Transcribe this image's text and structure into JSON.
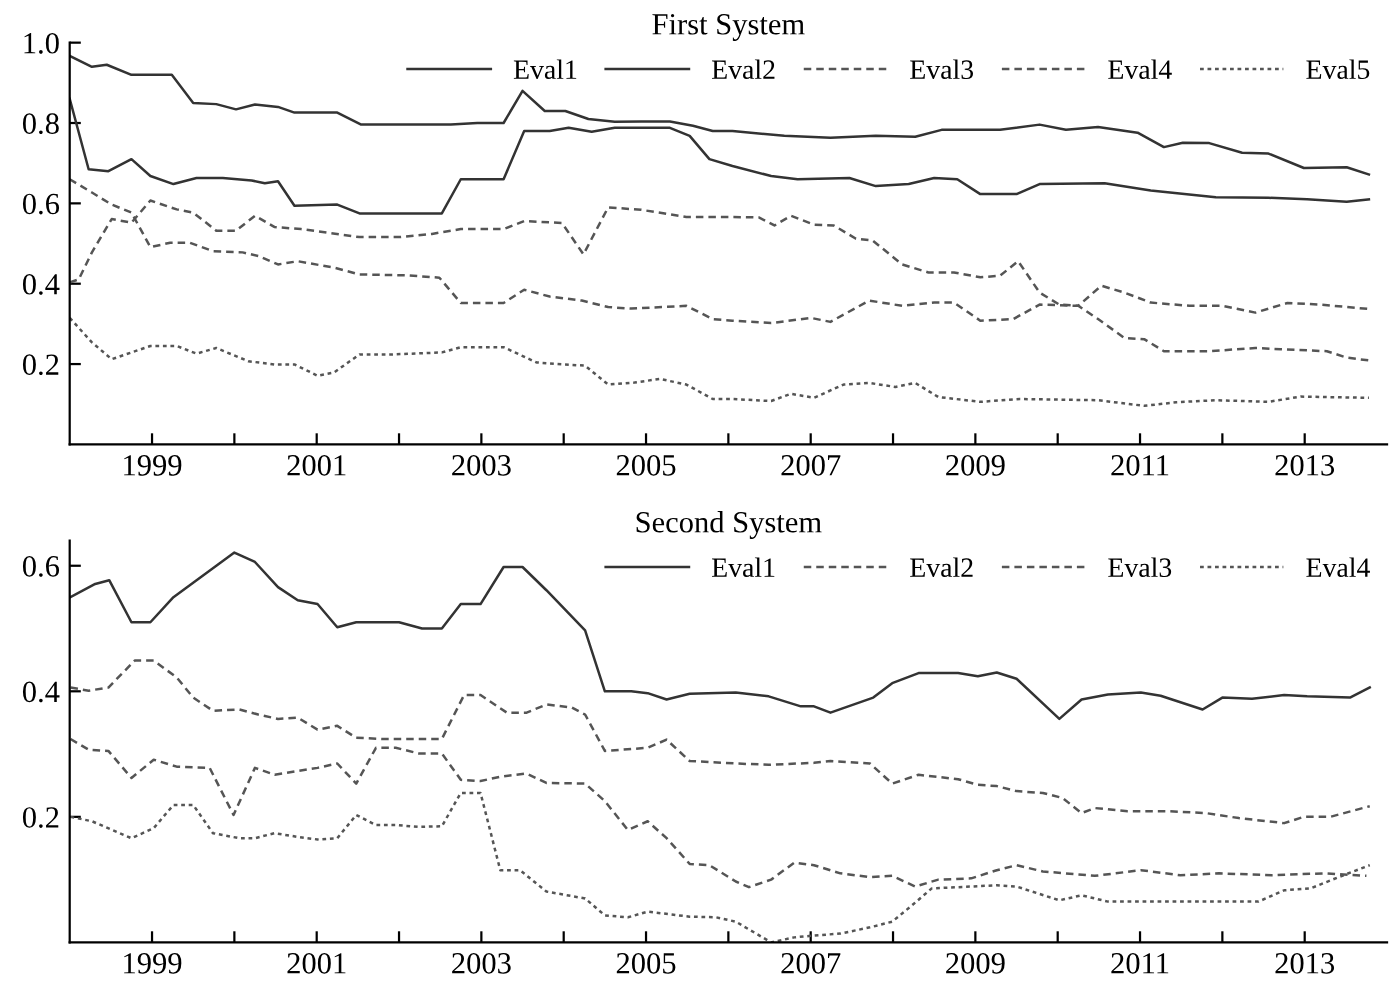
{
  "chart_data": [
    {
      "type": "line",
      "title": "First System",
      "legend": "top right",
      "xlim": [
        1998,
        2014
      ],
      "ylim": [
        0,
        1.0
      ],
      "xticks": [
        1999,
        {
          "value": 2000,
          "label": null
        },
        2001,
        {
          "value": 2002,
          "label": null
        },
        2003,
        {
          "value": 2004,
          "label": null
        },
        2005,
        {
          "value": 2006,
          "label": null
        },
        2007,
        {
          "value": 2008,
          "label": null
        },
        2009,
        {
          "value": 2010,
          "label": null
        },
        2011,
        {
          "value": 2012,
          "label": null
        },
        2013
      ],
      "yticks": [
        {
          "value": 0.2,
          "label": "0.2"
        },
        {
          "value": 0.4,
          "label": "0.4"
        },
        {
          "value": 0.6,
          "label": "0.6"
        },
        {
          "value": 0.8,
          "label": "0.8"
        },
        {
          "value": 1.0,
          "label": "1.0"
        }
      ],
      "series": [
        {
          "name": "Eval1",
          "color": "#333333",
          "line_style": "solid",
          "x": [
            1998.0,
            1998.27,
            1998.45,
            1998.75,
            1999.24,
            1999.5,
            1999.78,
            2000.02,
            2000.25,
            2000.53,
            2000.73,
            2001.25,
            2001.54,
            2002.63,
            2002.95,
            2003.27,
            2003.5,
            2003.77,
            2004.02,
            2004.3,
            2004.62,
            2004.94,
            2005.29,
            2005.57,
            2005.81,
            2006.05,
            2006.68,
            2007.24,
            2007.79,
            2008.27,
            2008.59,
            2009.3,
            2009.78,
            2010.1,
            2010.49,
            2010.97,
            2011.29,
            2011.52,
            2011.84,
            2012.24,
            2012.56,
            2012.99,
            2013.51,
            2013.78
          ],
          "values": [
            0.967,
            0.94,
            0.945,
            0.92,
            0.92,
            0.85,
            0.847,
            0.834,
            0.846,
            0.84,
            0.826,
            0.826,
            0.796,
            0.796,
            0.8,
            0.8,
            0.88,
            0.83,
            0.83,
            0.81,
            0.803,
            0.804,
            0.804,
            0.793,
            0.78,
            0.78,
            0.768,
            0.763,
            0.768,
            0.766,
            0.783,
            0.783,
            0.796,
            0.783,
            0.79,
            0.776,
            0.74,
            0.751,
            0.75,
            0.726,
            0.724,
            0.688,
            0.69,
            0.672
          ]
        },
        {
          "name": "Eval2",
          "color": "#333333",
          "line_style": "solid",
          "x": [
            1998.0,
            1998.23,
            1998.47,
            1998.75,
            1998.98,
            1999.26,
            1999.54,
            1999.86,
            2000.21,
            2000.37,
            2000.53,
            2000.73,
            2001.25,
            2001.52,
            2002.52,
            2002.75,
            2003.27,
            2003.52,
            2003.83,
            2004.06,
            2004.34,
            2004.62,
            2005.29,
            2005.53,
            2005.77,
            2006.05,
            2006.52,
            2006.84,
            2007.47,
            2007.79,
            2008.19,
            2008.5,
            2008.78,
            2009.06,
            2009.5,
            2009.78,
            2010.57,
            2011.13,
            2011.92,
            2012.56,
            2013.03,
            2013.51,
            2013.78
          ],
          "values": [
            0.86,
            0.685,
            0.68,
            0.71,
            0.668,
            0.648,
            0.663,
            0.663,
            0.657,
            0.65,
            0.655,
            0.594,
            0.597,
            0.575,
            0.575,
            0.66,
            0.66,
            0.78,
            0.78,
            0.788,
            0.778,
            0.788,
            0.788,
            0.768,
            0.71,
            0.693,
            0.668,
            0.66,
            0.663,
            0.643,
            0.648,
            0.663,
            0.66,
            0.623,
            0.623,
            0.648,
            0.65,
            0.632,
            0.615,
            0.614,
            0.61,
            0.604,
            0.61
          ]
        },
        {
          "name": "Eval3",
          "color": "#555555",
          "line_style": "dashed",
          "x": [
            1998.0,
            1998.27,
            1998.51,
            1998.75,
            1998.98,
            1999.22,
            1999.46,
            1999.74,
            2000.1,
            2000.29,
            2000.53,
            2000.77,
            2001.21,
            2001.52,
            2002.08,
            2002.49,
            2002.75,
            2003.27,
            2003.52,
            2003.83,
            2004.22,
            2004.54,
            2004.82,
            2005.49,
            2005.81,
            2006.05,
            2006.52,
            2007.0,
            2007.24,
            2007.71,
            2008.11,
            2008.5,
            2008.74,
            2009.06,
            2009.46,
            2009.78,
            2010.25,
            2010.53,
            2010.81,
            2011.13,
            2011.6,
            2012.0,
            2012.4,
            2012.79,
            2013.19,
            2013.78
          ],
          "values": [
            0.66,
            0.627,
            0.597,
            0.577,
            0.491,
            0.502,
            0.502,
            0.481,
            0.478,
            0.469,
            0.448,
            0.456,
            0.44,
            0.423,
            0.421,
            0.415,
            0.352,
            0.352,
            0.385,
            0.368,
            0.358,
            0.342,
            0.338,
            0.345,
            0.312,
            0.308,
            0.302,
            0.315,
            0.305,
            0.358,
            0.345,
            0.353,
            0.353,
            0.308,
            0.312,
            0.348,
            0.345,
            0.395,
            0.378,
            0.353,
            0.345,
            0.345,
            0.328,
            0.352,
            0.348,
            0.337
          ]
        },
        {
          "name": "Eval4",
          "color": "#555555",
          "line_style": "dashed",
          "x": [
            1998.0,
            1998.11,
            1998.27,
            1998.51,
            1998.75,
            1998.98,
            1999.3,
            1999.5,
            1999.78,
            2000.02,
            2000.25,
            2000.49,
            2000.81,
            2001.13,
            2001.52,
            2002.0,
            2002.4,
            2002.75,
            2003.27,
            2003.52,
            2003.98,
            2004.24,
            2004.54,
            2004.94,
            2005.49,
            2006.05,
            2006.37,
            2006.56,
            2006.76,
            2007.04,
            2007.28,
            2007.55,
            2007.75,
            2008.11,
            2008.43,
            2008.74,
            2009.06,
            2009.3,
            2009.52,
            2009.78,
            2010.02,
            2010.25,
            2010.49,
            2010.81,
            2011.05,
            2011.29,
            2011.84,
            2012.4,
            2012.71,
            2013.27,
            2013.51,
            2013.78
          ],
          "values": [
            0.403,
            0.411,
            0.478,
            0.561,
            0.552,
            0.607,
            0.585,
            0.577,
            0.532,
            0.532,
            0.569,
            0.541,
            0.536,
            0.527,
            0.516,
            0.516,
            0.524,
            0.536,
            0.536,
            0.556,
            0.551,
            0.473,
            0.59,
            0.584,
            0.566,
            0.566,
            0.565,
            0.545,
            0.569,
            0.547,
            0.545,
            0.512,
            0.508,
            0.448,
            0.428,
            0.428,
            0.416,
            0.42,
            0.456,
            0.378,
            0.348,
            0.345,
            0.312,
            0.265,
            0.262,
            0.232,
            0.232,
            0.24,
            0.237,
            0.232,
            0.216,
            0.209
          ]
        },
        {
          "name": "Eval5",
          "color": "#555555",
          "line_style": "dotted",
          "x": [
            1998.0,
            1998.27,
            1998.51,
            1998.75,
            1998.98,
            1999.3,
            1999.54,
            1999.78,
            2000.17,
            2000.49,
            2000.73,
            2001.01,
            2001.21,
            2001.52,
            2001.92,
            2002.52,
            2002.75,
            2003.27,
            2003.67,
            2004.02,
            2004.26,
            2004.54,
            2004.86,
            2005.17,
            2005.49,
            2005.81,
            2006.05,
            2006.52,
            2006.76,
            2007.04,
            2007.4,
            2007.71,
            2008.03,
            2008.27,
            2008.55,
            2009.06,
            2009.54,
            2010.49,
            2011.05,
            2011.44,
            2011.92,
            2012.56,
            2012.95,
            2013.78
          ],
          "values": [
            0.315,
            0.254,
            0.212,
            0.229,
            0.245,
            0.245,
            0.226,
            0.24,
            0.207,
            0.199,
            0.199,
            0.171,
            0.179,
            0.224,
            0.224,
            0.229,
            0.242,
            0.242,
            0.204,
            0.199,
            0.196,
            0.149,
            0.154,
            0.163,
            0.149,
            0.113,
            0.113,
            0.108,
            0.126,
            0.116,
            0.149,
            0.153,
            0.143,
            0.153,
            0.118,
            0.106,
            0.113,
            0.11,
            0.096,
            0.105,
            0.11,
            0.106,
            0.119,
            0.116
          ]
        }
      ]
    },
    {
      "type": "line",
      "title": "Second System",
      "legend": "top right",
      "xlim": [
        1998,
        2014
      ],
      "ylim": [
        0,
        0.64
      ],
      "xticks": [
        1999,
        {
          "value": 2000,
          "label": null
        },
        2001,
        {
          "value": 2002,
          "label": null
        },
        2003,
        {
          "value": 2004,
          "label": null
        },
        2005,
        {
          "value": 2006,
          "label": null
        },
        2007,
        {
          "value": 2008,
          "label": null
        },
        2009,
        {
          "value": 2010,
          "label": null
        },
        2011,
        {
          "value": 2012,
          "label": null
        },
        2013
      ],
      "yticks": [
        {
          "value": 0.2,
          "label": "0.2"
        },
        {
          "value": 0.4,
          "label": "0.4"
        },
        {
          "value": 0.6,
          "label": "0.6"
        }
      ],
      "series": [
        {
          "name": "Eval1",
          "color": "#333333",
          "line_style": "solid",
          "x": [
            1998.01,
            1998.31,
            1998.48,
            1998.75,
            1998.98,
            1999.26,
            2000.0,
            2000.25,
            2000.53,
            2000.77,
            2001.01,
            2001.25,
            2001.48,
            2002.0,
            2002.28,
            2002.52,
            2002.75,
            2002.99,
            2003.27,
            2003.5,
            2003.79,
            2004.26,
            2004.5,
            2004.82,
            2005.02,
            2005.25,
            2005.53,
            2006.09,
            2006.49,
            2006.88,
            2007.04,
            2007.24,
            2007.76,
            2007.99,
            2008.31,
            2008.79,
            2009.03,
            2009.26,
            2009.5,
            2010.02,
            2010.29,
            2010.61,
            2011.01,
            2011.25,
            2011.76,
            2012.0,
            2012.36,
            2012.75,
            2013.03,
            2013.55,
            2013.79
          ],
          "values": [
            0.55,
            0.571,
            0.577,
            0.51,
            0.51,
            0.55,
            0.621,
            0.606,
            0.566,
            0.545,
            0.539,
            0.502,
            0.51,
            0.51,
            0.5,
            0.5,
            0.539,
            0.539,
            0.598,
            0.598,
            0.561,
            0.497,
            0.4,
            0.4,
            0.397,
            0.387,
            0.396,
            0.398,
            0.392,
            0.376,
            0.376,
            0.366,
            0.39,
            0.413,
            0.429,
            0.429,
            0.424,
            0.43,
            0.42,
            0.356,
            0.387,
            0.395,
            0.398,
            0.393,
            0.371,
            0.39,
            0.388,
            0.394,
            0.392,
            0.39,
            0.406
          ]
        },
        {
          "name": "Eval2",
          "color": "#555555",
          "line_style": "dashed",
          "x": [
            1998.01,
            1998.23,
            1998.47,
            1998.79,
            1999.02,
            1999.3,
            1999.5,
            1999.74,
            2000.06,
            2000.29,
            2000.53,
            2000.77,
            2001.01,
            2001.25,
            2001.48,
            2001.8,
            2002.52,
            2002.79,
            2002.99,
            2003.31,
            2003.55,
            2003.79,
            2004.1,
            2004.26,
            2004.5,
            2005.02,
            2005.25,
            2005.53,
            2006.09,
            2006.49,
            2007.04,
            2007.24,
            2007.72,
            2007.99,
            2008.31,
            2008.79,
            2009.03,
            2009.26,
            2009.5,
            2009.82,
            2010.06,
            2010.29,
            2010.45,
            2010.85,
            2011.33,
            2011.8,
            2012.2,
            2012.75,
            2012.99,
            2013.31,
            2013.79
          ],
          "values": [
            0.406,
            0.401,
            0.406,
            0.449,
            0.449,
            0.422,
            0.39,
            0.369,
            0.371,
            0.363,
            0.356,
            0.358,
            0.339,
            0.345,
            0.326,
            0.324,
            0.324,
            0.394,
            0.394,
            0.366,
            0.366,
            0.379,
            0.374,
            0.363,
            0.305,
            0.31,
            0.323,
            0.289,
            0.285,
            0.283,
            0.286,
            0.289,
            0.285,
            0.253,
            0.267,
            0.26,
            0.251,
            0.249,
            0.241,
            0.238,
            0.23,
            0.206,
            0.214,
            0.209,
            0.209,
            0.206,
            0.198,
            0.19,
            0.2,
            0.2,
            0.217
          ]
        },
        {
          "name": "Eval3",
          "color": "#555555",
          "line_style": "dashed",
          "x": [
            1998.01,
            1998.23,
            1998.47,
            1998.75,
            1999.02,
            1999.3,
            1999.7,
            1999.99,
            2000.25,
            2000.49,
            2000.77,
            2001.01,
            2001.25,
            2001.48,
            2001.72,
            2001.96,
            2002.24,
            2002.52,
            2002.75,
            2002.99,
            2003.23,
            2003.55,
            2003.79,
            2004.26,
            2004.5,
            2004.78,
            2005.02,
            2005.25,
            2005.53,
            2005.77,
            2006.09,
            2006.25,
            2006.52,
            2006.8,
            2007.04,
            2007.36,
            2007.72,
            2007.99,
            2008.27,
            2008.55,
            2008.95,
            2009.26,
            2009.5,
            2009.82,
            2010.45,
            2011.01,
            2011.49,
            2011.96,
            2012.6,
            2013.23,
            2013.75
          ],
          "values": [
            0.324,
            0.307,
            0.305,
            0.262,
            0.291,
            0.28,
            0.278,
            0.203,
            0.278,
            0.267,
            0.273,
            0.278,
            0.285,
            0.253,
            0.31,
            0.31,
            0.301,
            0.301,
            0.259,
            0.257,
            0.264,
            0.269,
            0.254,
            0.253,
            0.225,
            0.179,
            0.193,
            0.166,
            0.125,
            0.123,
            0.097,
            0.088,
            0.1,
            0.127,
            0.123,
            0.11,
            0.104,
            0.106,
            0.089,
            0.1,
            0.102,
            0.115,
            0.123,
            0.113,
            0.106,
            0.115,
            0.107,
            0.11,
            0.107,
            0.11,
            0.106
          ]
        },
        {
          "name": "Eval4",
          "color": "#555555",
          "line_style": "dotted",
          "x": [
            1998.01,
            1998.27,
            1998.75,
            1999.02,
            1999.26,
            1999.5,
            1999.74,
            2000.06,
            2000.25,
            2000.49,
            2000.77,
            2001.01,
            2001.25,
            2001.48,
            2001.72,
            2001.96,
            2002.24,
            2002.52,
            2002.75,
            2002.99,
            2003.23,
            2003.47,
            2003.79,
            2004.26,
            2004.5,
            2004.78,
            2005.02,
            2005.53,
            2005.85,
            2006.09,
            2006.52,
            2006.8,
            2007.04,
            2007.36,
            2007.72,
            2007.99,
            2008.23,
            2008.47,
            2008.95,
            2009.26,
            2009.5,
            2010.02,
            2010.29,
            2010.61,
            2011.17,
            2011.96,
            2012.44,
            2012.75,
            2013.07,
            2013.47,
            2013.79
          ],
          "values": [
            0.2,
            0.193,
            0.166,
            0.182,
            0.219,
            0.219,
            0.174,
            0.166,
            0.166,
            0.174,
            0.168,
            0.164,
            0.166,
            0.203,
            0.187,
            0.187,
            0.184,
            0.185,
            0.238,
            0.238,
            0.115,
            0.115,
            0.081,
            0.07,
            0.043,
            0.04,
            0.049,
            0.041,
            0.04,
            0.033,
            0.0,
            0.008,
            0.011,
            0.014,
            0.024,
            0.033,
            0.059,
            0.086,
            0.089,
            0.091,
            0.089,
            0.067,
            0.075,
            0.065,
            0.065,
            0.065,
            0.065,
            0.083,
            0.086,
            0.107,
            0.123
          ]
        }
      ]
    }
  ]
}
